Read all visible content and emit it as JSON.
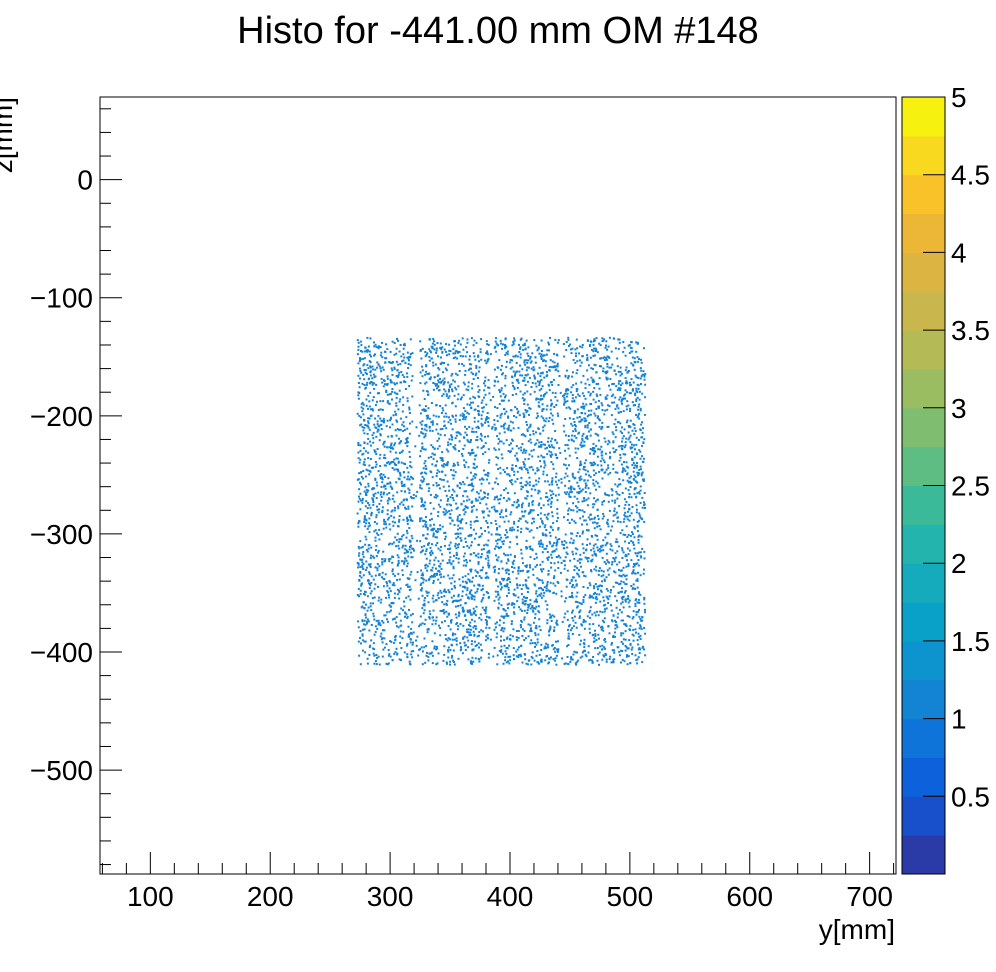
{
  "chart_data": {
    "type": "heatmap",
    "title": "Histo for -441.00 mm OM #148",
    "xlabel": "y[mm]",
    "ylabel": "z[mm]",
    "xlim": [
      58,
      722
    ],
    "ylim": [
      -588,
      70
    ],
    "x_ticks": [
      100,
      200,
      300,
      400,
      500,
      600,
      700
    ],
    "y_ticks": [
      0,
      -100,
      -200,
      -300,
      -400,
      -500
    ],
    "colorbar": {
      "range": [
        0,
        5
      ],
      "ticks": [
        "0.5",
        "1",
        "1.5",
        "2",
        "2.5",
        "3",
        "3.5",
        "4",
        "4.5",
        "5"
      ],
      "colors": [
        "#2a3ba8",
        "#1850cc",
        "#0d62db",
        "#0f74d9",
        "#1383d4",
        "#0d93ce",
        "#0aa1c8",
        "#16abbc",
        "#23b4ad",
        "#3bba99",
        "#5ebd82",
        "#7fbd70",
        "#9bbd62",
        "#b3ba56",
        "#c9b64d",
        "#dcb442",
        "#ecb637",
        "#f8c228",
        "#f9d920",
        "#f7f10f"
      ]
    },
    "hits_region": {
      "y_range": [
        272,
        512
      ],
      "z_range": [
        -410,
        -133
      ],
      "bin_value": 1
    }
  }
}
